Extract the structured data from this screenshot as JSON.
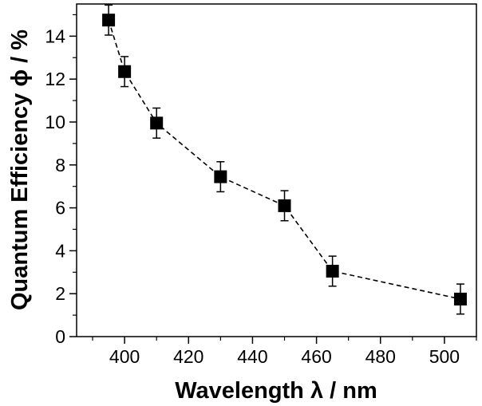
{
  "chart_data": {
    "type": "scatter",
    "title": "",
    "xlabel": "Wavelength λ / nm",
    "ylabel": "Quantum Efficiency ϕ  /  %",
    "xlim": [
      385,
      510
    ],
    "ylim": [
      0,
      15.5
    ],
    "x_ticks": [
      400,
      420,
      440,
      460,
      480,
      500
    ],
    "y_ticks": [
      0,
      2,
      4,
      6,
      8,
      10,
      12,
      14
    ],
    "x_tick_labels": [
      "400",
      "420",
      "440",
      "460",
      "480",
      "500"
    ],
    "y_tick_labels": [
      "0",
      "2",
      "4",
      "6",
      "8",
      "10",
      "12",
      "14"
    ],
    "grid": false,
    "series": [
      {
        "name": "Quantum Efficiency",
        "marker": "square",
        "line": "dashed",
        "color": "#000000",
        "x": [
          395,
          400,
          410,
          430,
          450,
          465,
          505
        ],
        "y": [
          14.75,
          12.35,
          9.95,
          7.45,
          6.1,
          3.05,
          1.75
        ],
        "error": [
          0.7,
          0.7,
          0.7,
          0.7,
          0.7,
          0.7,
          0.7
        ]
      }
    ]
  }
}
